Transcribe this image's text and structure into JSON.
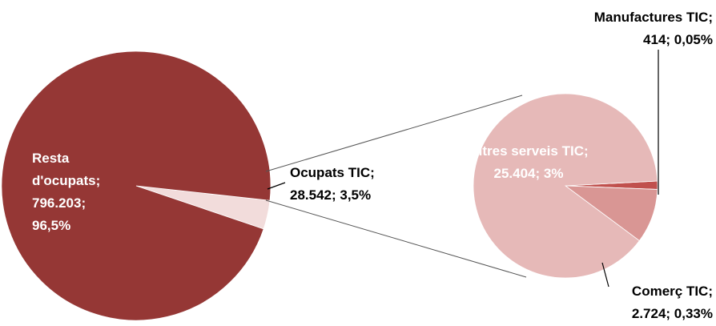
{
  "chart_data": [
    {
      "type": "pie",
      "values": [
        796203,
        28542
      ],
      "percents": [
        96.5,
        3.5
      ],
      "value_labels": [
        "Resta d'ocupats; 796.203; 96,5%",
        "Ocupats TIC; 28.542; 3,5%"
      ],
      "colors": [
        "#953735",
        "#f2dcdb"
      ]
    },
    {
      "type": "pie",
      "values": [
        25404,
        2724,
        414
      ],
      "percents": [
        3,
        0.33,
        0.05
      ],
      "value_labels": [
        "Altres serveis TIC; 25.404; 3%",
        "Comerç TIC; 2.724; 0,33%",
        "Manufactures TIC; 414; 0,05%"
      ],
      "colors": [
        "#e6b9b8",
        "#d99694",
        "#c0504d"
      ]
    }
  ]
}
